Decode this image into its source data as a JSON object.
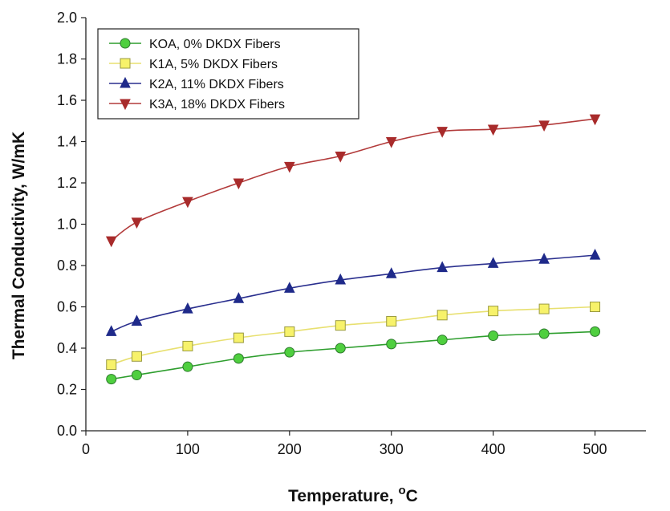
{
  "chart_data": {
    "type": "line",
    "xlabel": "Temperature, ",
    "xlabel_unit": "oC",
    "xlabel_unit_super": "o",
    "xlabel_unit_base": "C",
    "ylabel": "Thermal Conductivity, W/mK",
    "xlim": [
      0,
      550
    ],
    "ylim": [
      0.0,
      2.0
    ],
    "x_ticks": [
      0,
      100,
      200,
      300,
      400,
      500
    ],
    "y_ticks": [
      0.0,
      0.2,
      0.4,
      0.6,
      0.8,
      1.0,
      1.2,
      1.4,
      1.6,
      1.8,
      2.0
    ],
    "y_tick_labels": [
      "0.0",
      "0.2",
      "0.4",
      "0.6",
      "0.8",
      "1.0",
      "1.2",
      "1.4",
      "1.6",
      "1.8",
      "2.0"
    ],
    "x_tick_labels": [
      "0",
      "100",
      "200",
      "300",
      "400",
      "500"
    ],
    "grid": false,
    "legend_position": "top-left",
    "series": [
      {
        "name": "KOA, 0% DKDX Fibers",
        "color": "#2e9e2e",
        "marker_fill": "#4fcf3f",
        "marker": "circle",
        "x": [
          25,
          50,
          100,
          150,
          200,
          250,
          300,
          350,
          400,
          450,
          500
        ],
        "values": [
          0.25,
          0.27,
          0.31,
          0.35,
          0.38,
          0.4,
          0.42,
          0.44,
          0.46,
          0.47,
          0.48
        ]
      },
      {
        "name": "K1A, 5% DKDX Fibers",
        "color": "#e8e070",
        "marker_fill": "#f7f26a",
        "marker": "square",
        "x": [
          25,
          50,
          100,
          150,
          200,
          250,
          300,
          350,
          400,
          450,
          500
        ],
        "values": [
          0.32,
          0.36,
          0.41,
          0.45,
          0.48,
          0.51,
          0.53,
          0.56,
          0.58,
          0.59,
          0.6
        ]
      },
      {
        "name": "K2A, 11% DKDX Fibers",
        "color": "#2a2f8e",
        "marker_fill": "#1f2a8a",
        "marker": "triangle-up",
        "x": [
          25,
          50,
          100,
          150,
          200,
          250,
          300,
          350,
          400,
          450,
          500
        ],
        "values": [
          0.48,
          0.53,
          0.59,
          0.64,
          0.69,
          0.73,
          0.76,
          0.79,
          0.81,
          0.83,
          0.85
        ]
      },
      {
        "name": "K3A, 18% DKDX Fibers",
        "color": "#b23a3a",
        "marker_fill": "#a82b2b",
        "marker": "triangle-down",
        "x": [
          25,
          50,
          100,
          150,
          200,
          250,
          300,
          350,
          400,
          450,
          500
        ],
        "values": [
          0.92,
          1.01,
          1.11,
          1.2,
          1.28,
          1.33,
          1.4,
          1.45,
          1.46,
          1.48,
          1.51
        ]
      }
    ]
  }
}
